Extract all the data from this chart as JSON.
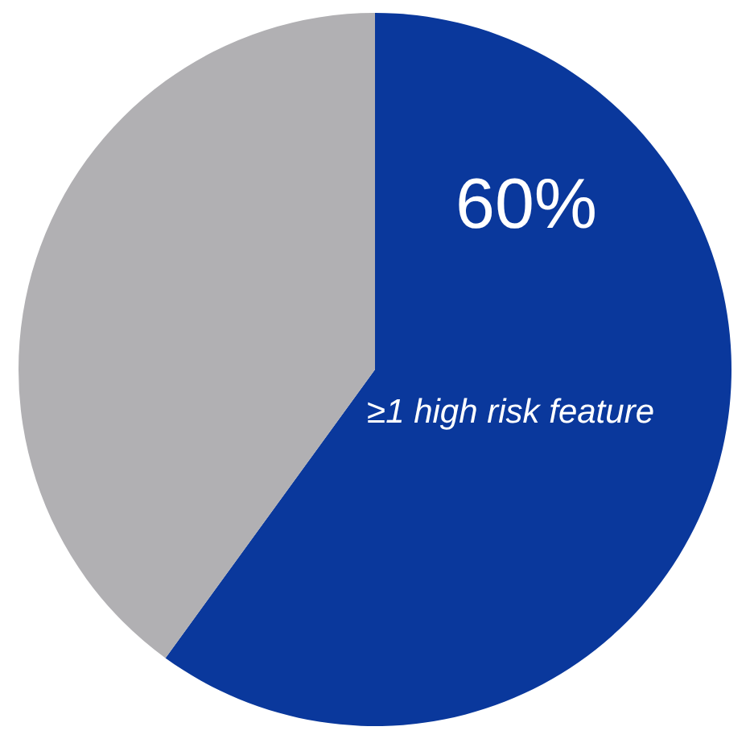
{
  "chart_data": {
    "type": "pie",
    "categories": [
      "≥1 high risk feature",
      null
    ],
    "values": [
      60,
      40
    ],
    "colors": [
      "#0a389c",
      "#b1b0b3"
    ],
    "value_labels": [
      "60%",
      null
    ],
    "legend": false
  }
}
